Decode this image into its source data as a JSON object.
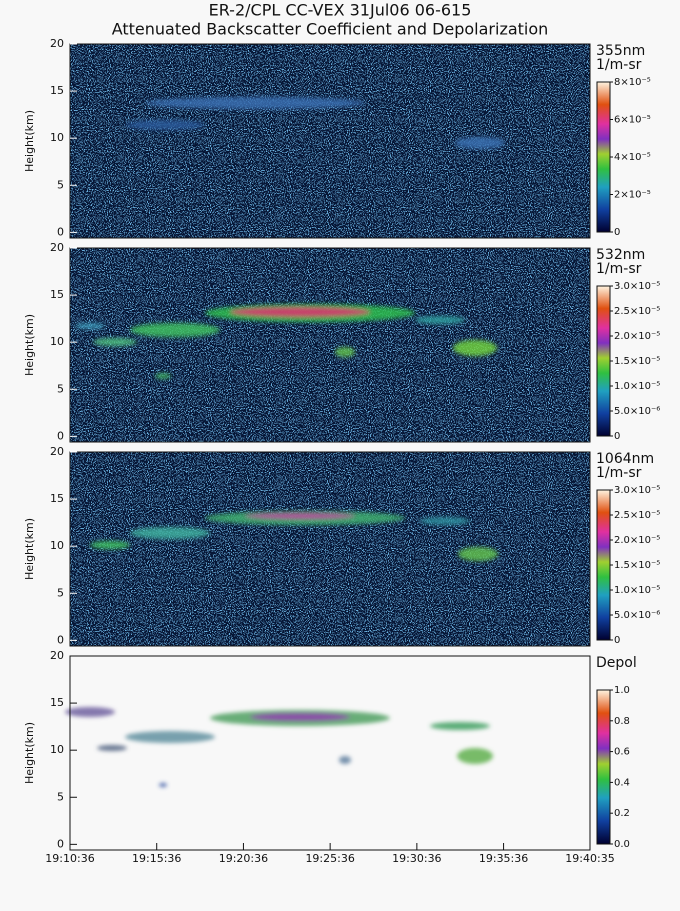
{
  "title": "ER-2/CPL CC-VEX 31Jul06 06-615",
  "subtitle": "Attenuated Backscatter Coefficient and Depolarization",
  "chart_data": [
    {
      "type": "heatmap",
      "ylabel": "Height(km)",
      "ylim": [
        -0.6,
        20
      ],
      "yticks": [
        0,
        5,
        10,
        15,
        20
      ],
      "colorbar_title": [
        "355nm",
        "1/m-sr"
      ],
      "clim": [
        0,
        8e-05
      ],
      "cticks": [
        0,
        {
          "value": 2e-05,
          "label": "2×10⁻⁵"
        },
        {
          "value": 4e-05,
          "label": "4×10⁻⁵"
        },
        {
          "value": 6e-05,
          "label": "6×10⁻⁵"
        },
        {
          "value": 8e-05,
          "label": "8×10⁻⁵"
        }
      ]
    },
    {
      "type": "heatmap",
      "ylabel": "Height(km)",
      "ylim": [
        -0.6,
        20
      ],
      "yticks": [
        0,
        5,
        10,
        15,
        20
      ],
      "colorbar_title": [
        "532nm",
        "1/m-sr"
      ],
      "clim": [
        0,
        3e-05
      ],
      "cticks": [
        0,
        {
          "value": 5e-06,
          "label": "5.0×10⁻⁶"
        },
        {
          "value": 1e-05,
          "label": "1.0×10⁻⁵"
        },
        {
          "value": 1.5e-05,
          "label": "1.5×10⁻⁵"
        },
        {
          "value": 2e-05,
          "label": "2.0×10⁻⁵"
        },
        {
          "value": 2.5e-05,
          "label": "2.5×10⁻⁵"
        },
        {
          "value": 3e-05,
          "label": "3.0×10⁻⁵"
        }
      ]
    },
    {
      "type": "heatmap",
      "ylabel": "Height(km)",
      "ylim": [
        -0.6,
        20
      ],
      "yticks": [
        0,
        5,
        10,
        15,
        20
      ],
      "colorbar_title": [
        "1064nm",
        "1/m-sr"
      ],
      "clim": [
        0,
        3e-05
      ],
      "cticks": [
        0,
        {
          "value": 5e-06,
          "label": "5.0×10⁻⁶"
        },
        {
          "value": 1e-05,
          "label": "1.0×10⁻⁵"
        },
        {
          "value": 1.5e-05,
          "label": "1.5×10⁻⁵"
        },
        {
          "value": 2e-05,
          "label": "2.0×10⁻⁵"
        },
        {
          "value": 2.5e-05,
          "label": "2.5×10⁻⁵"
        },
        {
          "value": 3e-05,
          "label": "3.0×10⁻⁵"
        }
      ]
    },
    {
      "type": "heatmap",
      "ylabel": "Height(km)",
      "ylim": [
        -0.6,
        20
      ],
      "yticks": [
        0,
        5,
        10,
        15,
        20
      ],
      "colorbar_title": [
        "Depol"
      ],
      "clim": [
        0,
        1
      ],
      "cticks": [
        {
          "value": 0,
          "label": "0.0"
        },
        0.2,
        0.4,
        0.6,
        0.8,
        {
          "value": 1,
          "label": "1.0"
        }
      ],
      "xlim": [
        0,
        1799
      ],
      "xticks": [
        {
          "value": 0,
          "label": "19:10:36"
        },
        {
          "value": 300,
          "label": "19:15:36"
        },
        {
          "value": 600,
          "label": "19:20:36"
        },
        {
          "value": 900,
          "label": "19:25:36"
        },
        {
          "value": 1200,
          "label": "19:30:36"
        },
        {
          "value": 1500,
          "label": "19:35:36"
        },
        {
          "value": 1799,
          "label": "19:40:35"
        }
      ]
    }
  ]
}
